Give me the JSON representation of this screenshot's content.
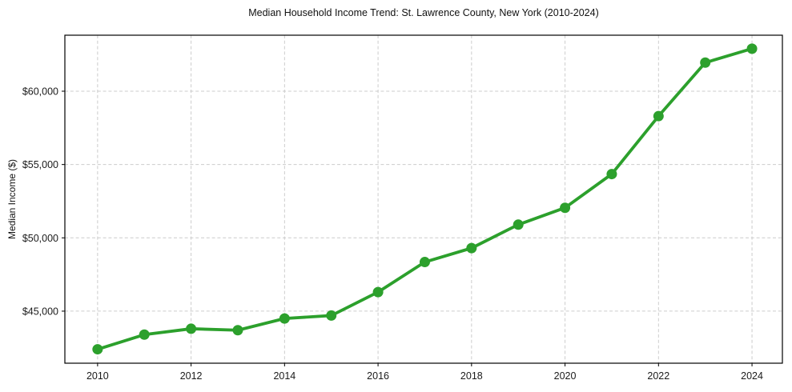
{
  "page": {
    "background_color": "#ffffff"
  },
  "chart_data": {
    "type": "line",
    "title": "Median Household Income Trend: St. Lawrence County, New York (2010-2024)",
    "xlabel": "",
    "ylabel": "Median Income ($)",
    "x": [
      2010,
      2011,
      2012,
      2013,
      2014,
      2015,
      2016,
      2017,
      2018,
      2019,
      2020,
      2021,
      2022,
      2023,
      2024
    ],
    "series": [
      {
        "name": "Median Household Income",
        "values": [
          42400,
          43400,
          43800,
          43700,
          44500,
          44700,
          46300,
          48350,
          49300,
          50900,
          52050,
          54350,
          58300,
          61950,
          62900
        ]
      }
    ],
    "xticks": {
      "values": [
        2010,
        2012,
        2014,
        2016,
        2018,
        2020,
        2022,
        2024
      ],
      "labels": [
        "2010",
        "2012",
        "2014",
        "2016",
        "2018",
        "2020",
        "2022",
        "2024"
      ]
    },
    "yticks": {
      "values": [
        45000,
        50000,
        55000,
        60000
      ],
      "labels": [
        "$45,000",
        "$50,000",
        "$55,000",
        "$60,000"
      ]
    },
    "xlim": [
      2009.3,
      2024.65
    ],
    "ylim": [
      41450,
      63820
    ],
    "grid": true,
    "grid_style": "dashed",
    "legend": false,
    "marker": "circle",
    "line_color": "#2ca02c",
    "marker_color": "#2ca02c",
    "grid_color": "#cccccc",
    "frame_color": "#000000",
    "tick_text_color": "#1a1a1a"
  }
}
